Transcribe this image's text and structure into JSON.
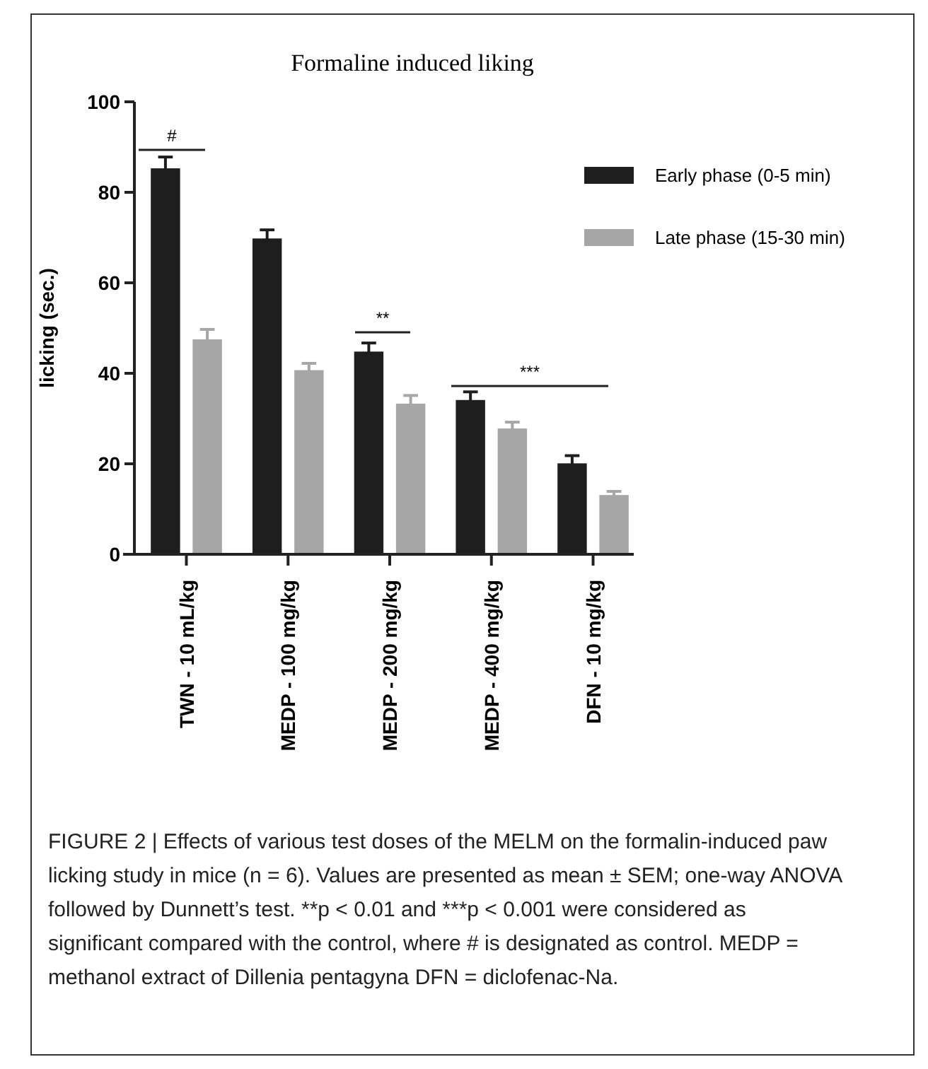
{
  "chart_data": {
    "type": "bar",
    "title": "Formaline induced liking",
    "ylabel": "licking (sec.)",
    "categories": [
      "TWN - 10 mL/kg",
      "MEDP - 100 mg/kg",
      "MEDP - 200 mg/kg",
      "MEDP - 400 mg/kg",
      "DFN - 10 mg/kg"
    ],
    "series": [
      {
        "name": "Early phase (0-5 min)",
        "color": "#1e1e1e",
        "values": [
          85.3,
          69.8,
          44.8,
          34.1,
          20.1
        ],
        "errors": [
          2.5,
          1.9,
          1.9,
          1.8,
          1.7
        ]
      },
      {
        "name": "Late phase (15-30 min)",
        "color": "#a6a6a6",
        "values": [
          47.5,
          40.7,
          33.3,
          27.8,
          13.1
        ],
        "errors": [
          2.2,
          1.5,
          1.8,
          1.4,
          0.8
        ]
      }
    ],
    "ylim": [
      0,
      100
    ],
    "yticks": [
      0,
      20,
      40,
      60,
      80,
      100
    ],
    "grid": false,
    "legend": "right",
    "annotations": [
      "#",
      "**",
      "***",
      "FIGURE 2 | Effects of various test doses of the MELM on the formalin-induced paw licking study in mice (n = 6). Values are presented as mean ± SEM; one-way ANOVA followed by Dunnett’s test. **p < 0.01 and ***p < 0.001 were considered as significant compared with the control, where # is designated as control. MEDP = methanol extract of Dillenia pentagyna DFN = diclofenac-Na."
    ]
  }
}
